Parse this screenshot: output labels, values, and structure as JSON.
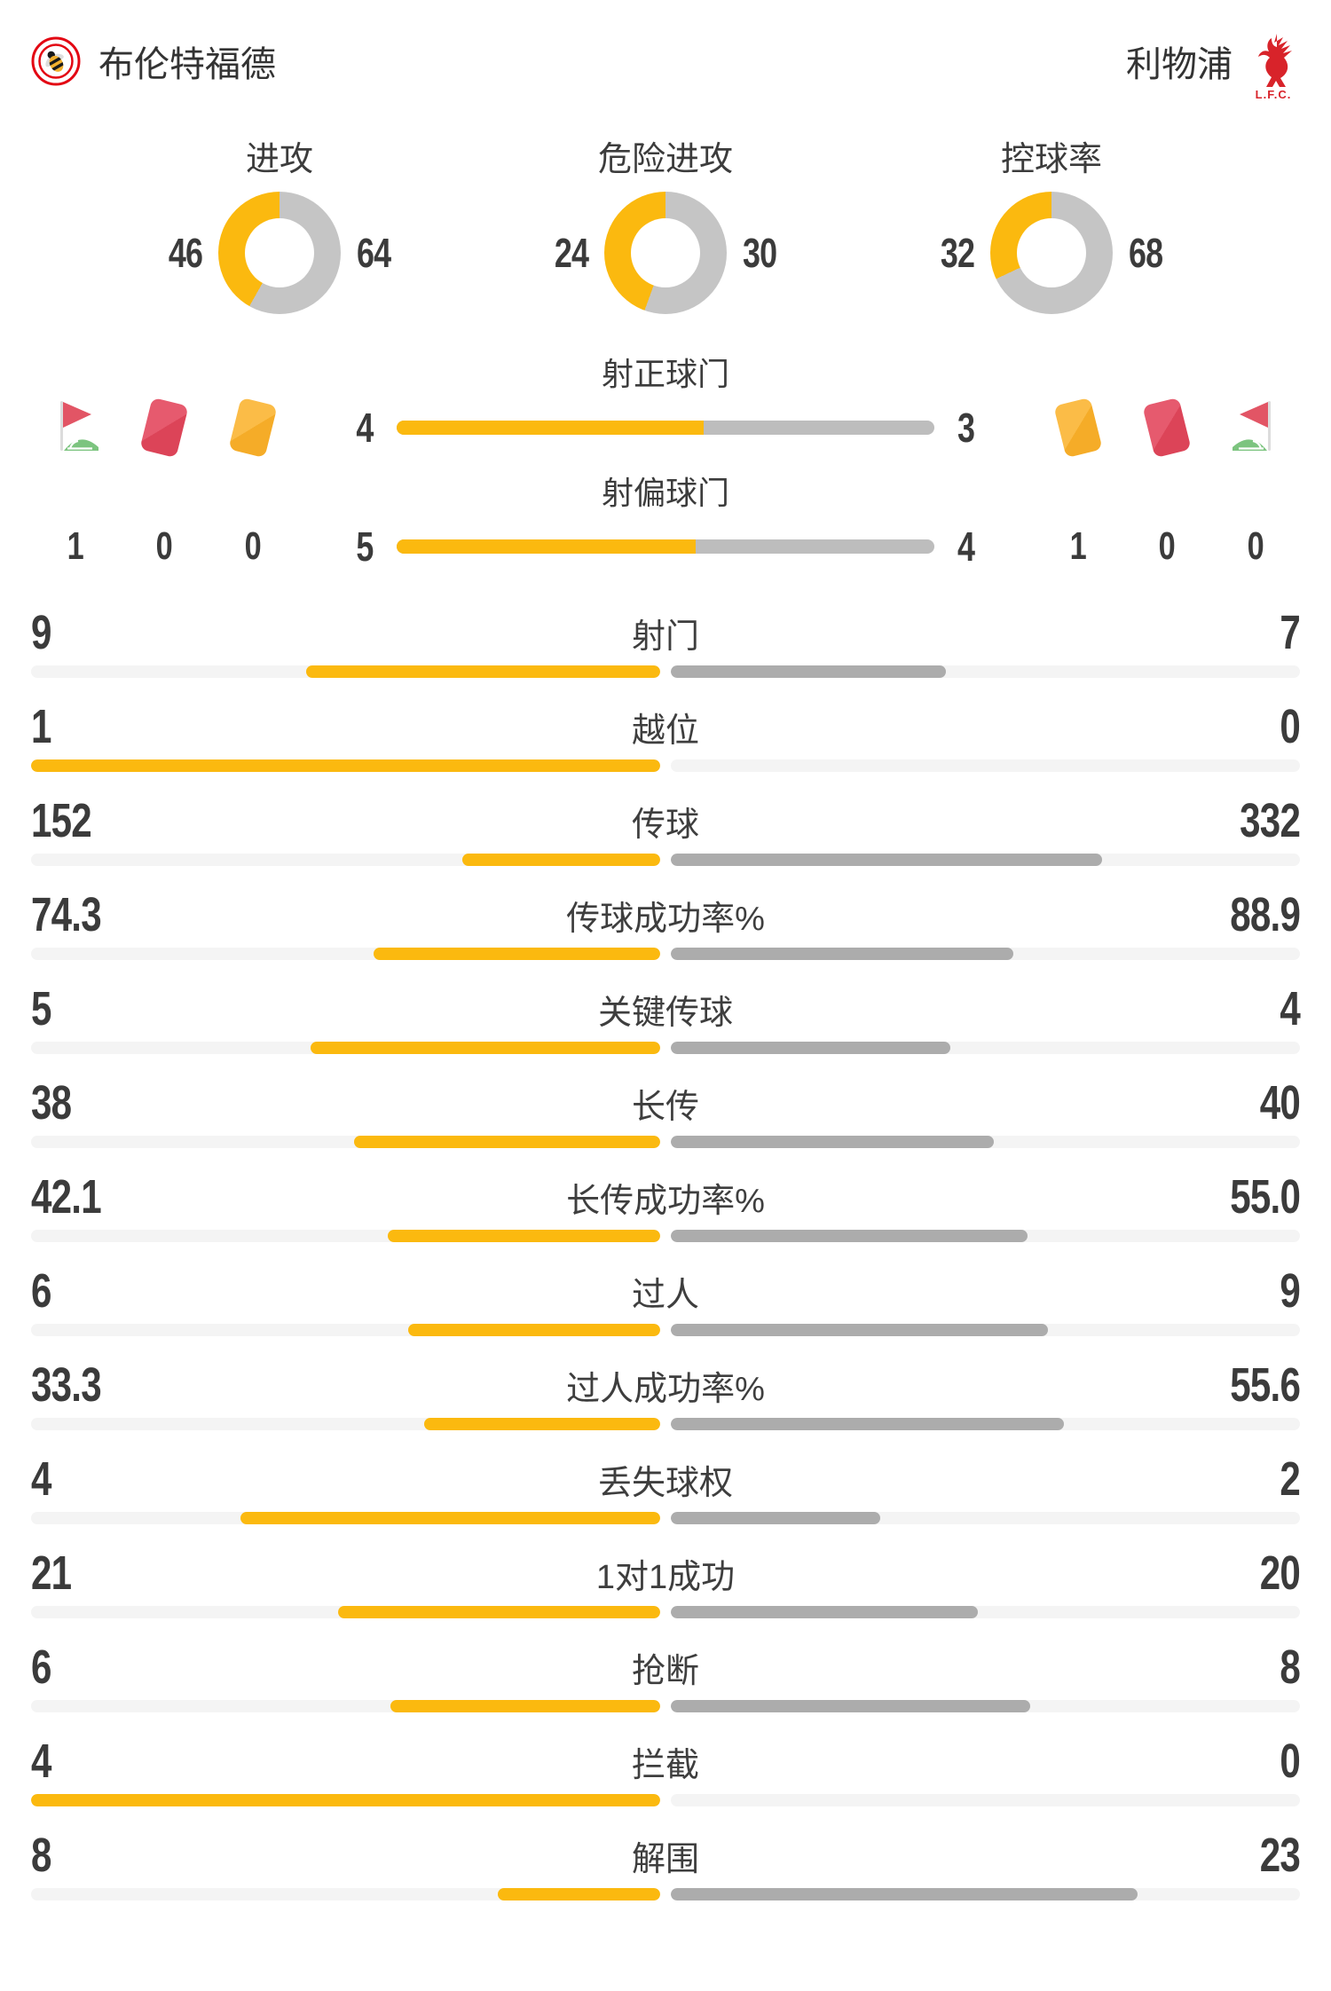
{
  "header": {
    "home_team": "布伦特福德",
    "away_team": "利物浦",
    "away_crest_text": "L.F.C."
  },
  "colors": {
    "home_accent": "#FBB90F",
    "away_bar": "#ACACAC",
    "shot_bar_gray": "#BDBDBD",
    "donut_gray": "#C5C5C5",
    "track": "#F4F4F4",
    "red_card": "#DC4458",
    "yellow_card": "#F5AC28",
    "flag_red": "#E25565",
    "flag_green": "#7CC47F",
    "crest_red": "#E30613",
    "lfc_red": "#D8232A",
    "text": "#3B3B3B"
  },
  "donuts": [
    {
      "label": "进攻",
      "home": "46",
      "away": "64"
    },
    {
      "label": "危险进攻",
      "home": "24",
      "away": "30"
    },
    {
      "label": "控球率",
      "home": "32",
      "away": "68"
    }
  ],
  "discipline": {
    "home": {
      "icons": [
        "corner-flag",
        "red-card",
        "yellow-card"
      ],
      "values": [
        "1",
        "0",
        "0"
      ]
    },
    "away": {
      "icons": [
        "yellow-card",
        "red-card",
        "corner-flag"
      ],
      "values": [
        "1",
        "0",
        "0"
      ]
    }
  },
  "shot_rows": [
    {
      "label": "射正球门",
      "home": "4",
      "away": "3"
    },
    {
      "label": "射偏球门",
      "home": "5",
      "away": "4"
    }
  ],
  "stats": [
    {
      "label": "射门",
      "home": "9",
      "away": "7"
    },
    {
      "label": "越位",
      "home": "1",
      "away": "0"
    },
    {
      "label": "传球",
      "home": "152",
      "away": "332"
    },
    {
      "label": "传球成功率%",
      "home": "74.3",
      "away": "88.9"
    },
    {
      "label": "关键传球",
      "home": "5",
      "away": "4"
    },
    {
      "label": "长传",
      "home": "38",
      "away": "40"
    },
    {
      "label": "长传成功率%",
      "home": "42.1",
      "away": "55.0"
    },
    {
      "label": "过人",
      "home": "6",
      "away": "9"
    },
    {
      "label": "过人成功率%",
      "home": "33.3",
      "away": "55.6"
    },
    {
      "label": "丢失球权",
      "home": "4",
      "away": "2"
    },
    {
      "label": "1对1成功",
      "home": "21",
      "away": "20"
    },
    {
      "label": "抢断",
      "home": "6",
      "away": "8"
    },
    {
      "label": "拦截",
      "home": "4",
      "away": "0"
    },
    {
      "label": "解围",
      "home": "8",
      "away": "23"
    }
  ]
}
